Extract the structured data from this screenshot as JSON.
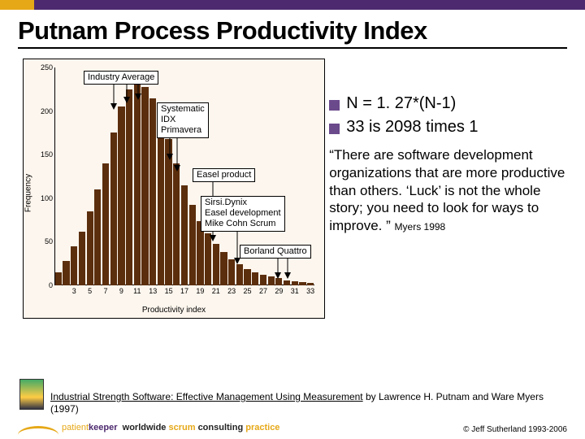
{
  "title": "Putnam Process Productivity Index",
  "chart": {
    "type": "bar",
    "xlabel": "Productivity index",
    "ylabel": "Frequency",
    "ylim": [
      0,
      250
    ],
    "ytick_step": 50,
    "xticks": [
      3,
      5,
      7,
      9,
      11,
      13,
      15,
      17,
      19,
      21,
      23,
      25,
      27,
      29,
      31,
      33
    ],
    "bar_color": "#5b2e0d",
    "background_color": "#fdf6ee",
    "categories": [
      1,
      2,
      3,
      4,
      5,
      6,
      7,
      8,
      9,
      10,
      11,
      12,
      13,
      14,
      15,
      16,
      17,
      18,
      19,
      20,
      21,
      22,
      23,
      24,
      25,
      26,
      27,
      28,
      29,
      30,
      31,
      32,
      33
    ],
    "values": [
      15,
      28,
      45,
      62,
      85,
      110,
      140,
      175,
      205,
      225,
      232,
      228,
      215,
      195,
      168,
      140,
      115,
      92,
      74,
      60,
      48,
      38,
      30,
      24,
      19,
      15,
      12,
      10,
      8,
      6,
      5,
      4,
      3
    ]
  },
  "annotations": {
    "industry_avg": "Industry Average",
    "systematic": "Systematic\nIDX\nPrimavera",
    "easel_prod": "Easel product",
    "sirsi": "Sirsi.Dynix\nEasel development\nMike Cohn Scrum",
    "borland": "Borland Quattro"
  },
  "bullets": [
    "N = 1. 27*(N-1)",
    "33 is 2098 times 1"
  ],
  "quote": "“There are software development organizations that are more productive than others. ‘Luck’ is not the whole story; you need to look for ways to improve. ”",
  "quote_cite": "Myers 1998",
  "ref_title": "Industrial Strength Software: Effective Management Using Measurement",
  "ref_rest": " by Lawrence H. Putnam and Ware Myers (1997)",
  "tagline_w": "worldwide ",
  "tagline_s": "scrum ",
  "tagline_c": "consulting ",
  "tagline_p": "practice",
  "copyright": "© Jeff Sutherland 1993-2006",
  "logo_brand_a": "patient",
  "logo_brand_b": "keeper"
}
